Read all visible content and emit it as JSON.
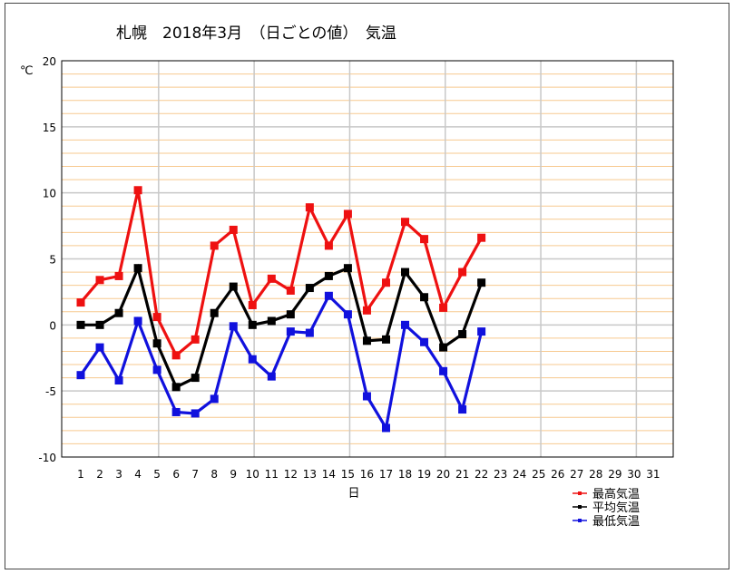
{
  "chart_data": {
    "type": "line",
    "title": "札幌　2018年3月　（日ごとの値）　気温",
    "ylabel": "℃",
    "xlabel": "日",
    "ylim": [
      -10,
      20
    ],
    "y_ticks": [
      20,
      15,
      10,
      5,
      0,
      -5,
      -10
    ],
    "x_ticks": [
      1,
      2,
      3,
      4,
      5,
      6,
      7,
      8,
      9,
      10,
      11,
      12,
      13,
      14,
      15,
      16,
      17,
      18,
      19,
      20,
      21,
      22,
      23,
      24,
      25,
      26,
      27,
      28,
      29,
      30,
      31
    ],
    "grid": true,
    "legend_position": "bottom-right",
    "series": [
      {
        "name": "最高気温",
        "color": "#ee1111",
        "values": [
          1.7,
          3.4,
          3.7,
          10.2,
          0.6,
          -2.3,
          -1.1,
          6.0,
          7.2,
          1.5,
          3.5,
          2.6,
          8.9,
          6.0,
          8.4,
          1.1,
          3.2,
          7.8,
          6.5,
          1.3,
          4.0,
          6.6
        ]
      },
      {
        "name": "平均気温",
        "color": "#000000",
        "values": [
          0.0,
          0.0,
          0.9,
          4.3,
          -1.4,
          -4.7,
          -4.0,
          0.9,
          2.9,
          0.0,
          0.3,
          0.8,
          2.8,
          3.7,
          4.3,
          -1.2,
          -1.1,
          4.0,
          2.1,
          -1.7,
          -0.7,
          3.2
        ]
      },
      {
        "name": "最低気温",
        "color": "#1111dd",
        "values": [
          -3.8,
          -1.7,
          -4.2,
          0.3,
          -3.4,
          -6.6,
          -6.7,
          -5.6,
          -0.1,
          -2.6,
          -3.9,
          -0.5,
          -0.6,
          2.2,
          0.8,
          -5.4,
          -7.8,
          0.0,
          -1.3,
          -3.5,
          -6.4,
          -0.5
        ]
      }
    ]
  }
}
